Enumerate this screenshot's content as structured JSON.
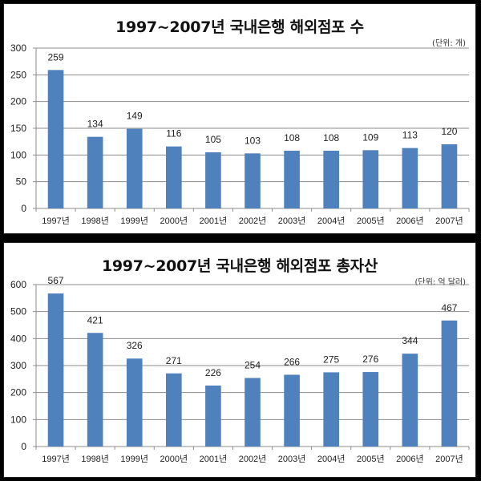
{
  "chart_data": [
    {
      "type": "bar",
      "title": "1997~2007년 국내은행 해외점포 수",
      "unit_label": "(단위: 개)",
      "categories": [
        "1997년",
        "1998년",
        "1999년",
        "2000년",
        "2001년",
        "2002년",
        "2003년",
        "2004년",
        "2005년",
        "2006년",
        "2007년"
      ],
      "values": [
        259,
        134,
        149,
        116,
        105,
        103,
        108,
        108,
        109,
        113,
        120
      ],
      "xlabel": "",
      "ylabel": "",
      "ylim": [
        0,
        300
      ],
      "yticks": [
        0,
        50,
        100,
        150,
        200,
        250,
        300
      ],
      "grid": true,
      "legend": null,
      "bar_color": "#4f81bd"
    },
    {
      "type": "bar",
      "title": "1997~2007년 국내은행 해외점포 총자산",
      "unit_label": "(단위: 억 달러)",
      "categories": [
        "1997년",
        "1998년",
        "1999년",
        "2000년",
        "2001년",
        "2002년",
        "2003년",
        "2004년",
        "2005년",
        "2006년",
        "2007년"
      ],
      "values": [
        567,
        421,
        326,
        271,
        226,
        254,
        266,
        275,
        276,
        344,
        467
      ],
      "xlabel": "",
      "ylabel": "",
      "ylim": [
        0,
        600
      ],
      "yticks": [
        0,
        100,
        200,
        300,
        400,
        500,
        600
      ],
      "grid": true,
      "legend": null,
      "bar_color": "#4f81bd"
    }
  ]
}
